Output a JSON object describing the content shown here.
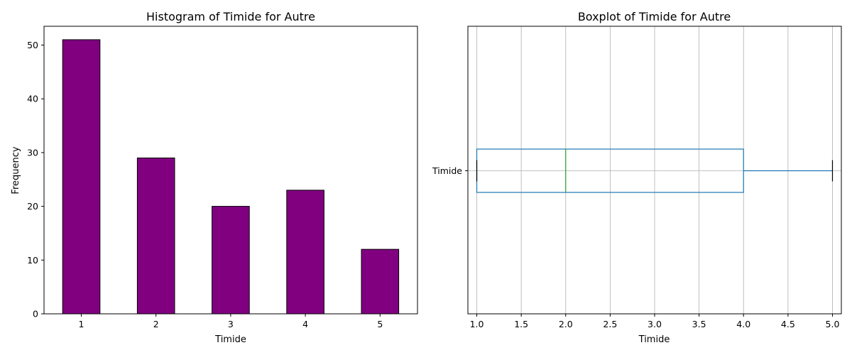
{
  "chart_data": [
    {
      "type": "bar",
      "title": "Histogram of Timide for Autre",
      "xlabel": "Timide",
      "ylabel": "Frequency",
      "categories": [
        "1",
        "2",
        "3",
        "4",
        "5"
      ],
      "values": [
        51,
        29,
        20,
        23,
        12
      ],
      "ylim": [
        0,
        53.5
      ],
      "yticks": [
        0,
        10,
        20,
        30,
        40,
        50
      ],
      "grid": false,
      "bar_color": "#800080",
      "edge_color": "#000000"
    },
    {
      "type": "boxplot",
      "title": "Boxplot of Timide for Autre",
      "xlabel": "Timide",
      "ytick_label": "Timide",
      "orientation": "horizontal",
      "xlim": [
        0.9,
        5.1
      ],
      "xticks": [
        "1.0",
        "1.5",
        "2.0",
        "2.5",
        "3.0",
        "3.5",
        "4.0",
        "4.5",
        "5.0"
      ],
      "grid": true,
      "stats": {
        "whisker_low": 1.0,
        "q1": 1.0,
        "median": 2.0,
        "q3": 4.0,
        "whisker_high": 5.0
      },
      "box_color": "#1f77b4",
      "median_color": "#2ca02c",
      "cap_color": "#000000"
    }
  ]
}
